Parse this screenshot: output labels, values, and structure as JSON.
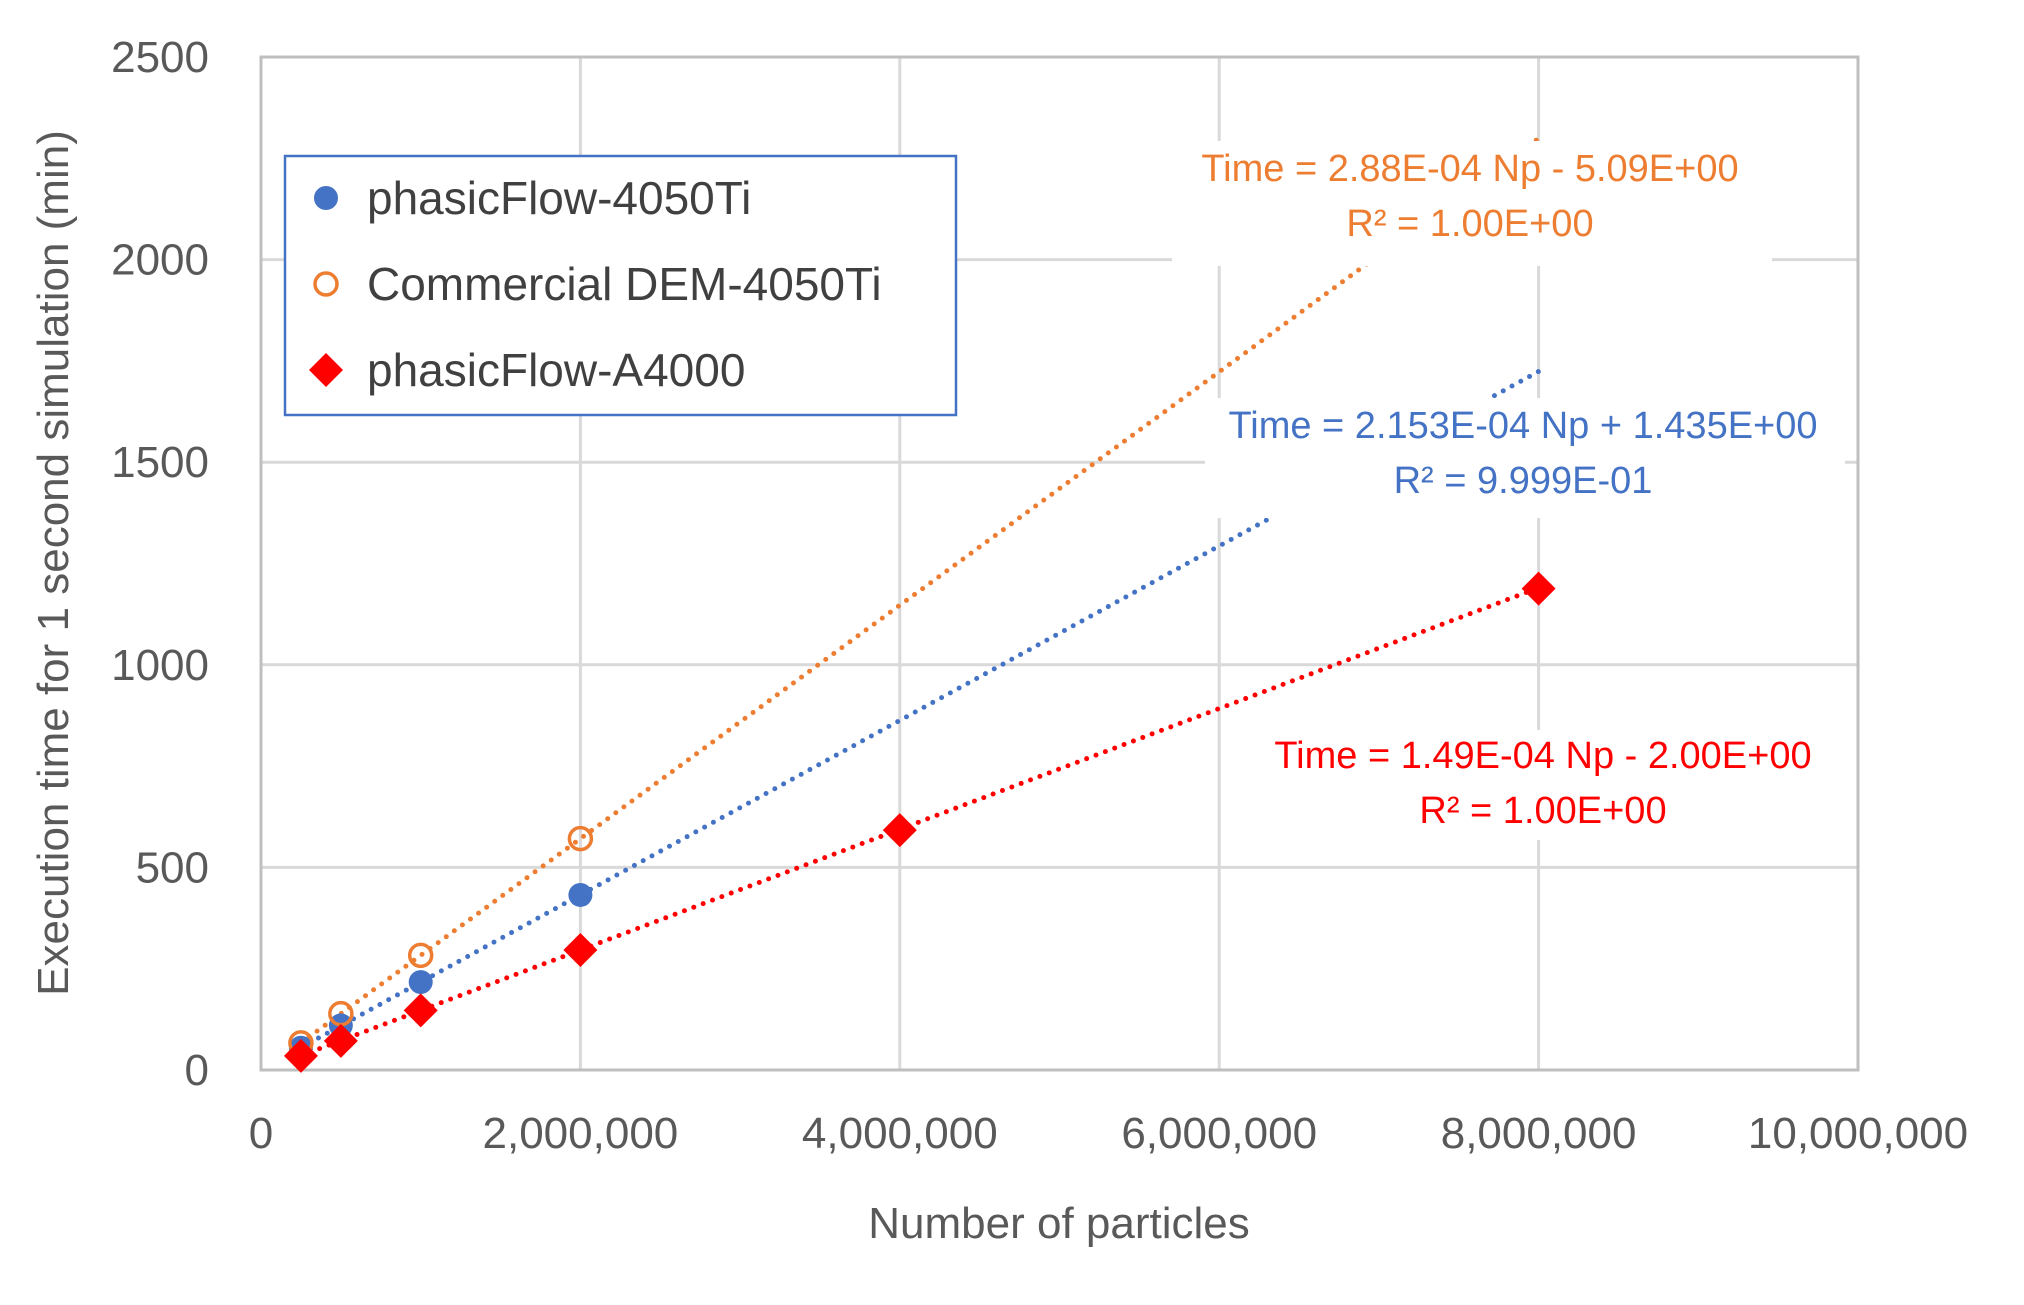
{
  "chart_data": {
    "type": "scatter",
    "title": "",
    "xlabel": "Number of particles",
    "ylabel": "Execution time for 1 second simulation (min)",
    "xlim": [
      0,
      10000000
    ],
    "ylim": [
      0,
      2500
    ],
    "xticks": [
      "0",
      "2,000,000",
      "4,000,000",
      "6,000,000",
      "8,000,000",
      "10,000,000"
    ],
    "xtick_values": [
      0,
      2000000,
      4000000,
      6000000,
      8000000,
      10000000
    ],
    "yticks": [
      "0",
      "500",
      "1000",
      "1500",
      "2000",
      "2500"
    ],
    "ytick_values": [
      0,
      500,
      1000,
      1500,
      2000,
      2500
    ],
    "grid": true,
    "legend_position": "top-left",
    "series": [
      {
        "name": "phasicFlow-4050Ti",
        "marker": "filled-circle",
        "color": "#4472C4",
        "x": [
          250000,
          500000,
          1000000,
          2000000
        ],
        "y": [
          55,
          110,
          217,
          432
        ],
        "trendline": {
          "slope": 0.0002153,
          "intercept": 1.435,
          "x_end": 8000000,
          "equation": "Time = 2.153E-04 Np + 1.435E+00",
          "r2": "R² = 9.999E-01"
        }
      },
      {
        "name": "Commercial DEM-4050Ti",
        "marker": "open-circle",
        "color": "#ED7D31",
        "x": [
          250000,
          500000,
          1000000,
          2000000
        ],
        "y": [
          67,
          139,
          283,
          571
        ],
        "trendline": {
          "slope": 0.000288,
          "intercept": -5.09,
          "x_end": 8000000,
          "equation": "Time = 2.88E-04 Np - 5.09E+00",
          "r2": "R² = 1.00E+00"
        }
      },
      {
        "name": "phasicFlow-A4000",
        "marker": "diamond",
        "color": "#FF0000",
        "x": [
          250000,
          500000,
          1000000,
          2000000,
          4000000,
          8000000
        ],
        "y": [
          35,
          72,
          147,
          296,
          592,
          1188
        ],
        "trendline": {
          "slope": 0.000149,
          "intercept": -2.0,
          "x_end": 8000000,
          "equation": "Time = 1.49E-04 Np - 2.00E+00",
          "r2": "R² = 1.00E+00"
        }
      }
    ]
  }
}
